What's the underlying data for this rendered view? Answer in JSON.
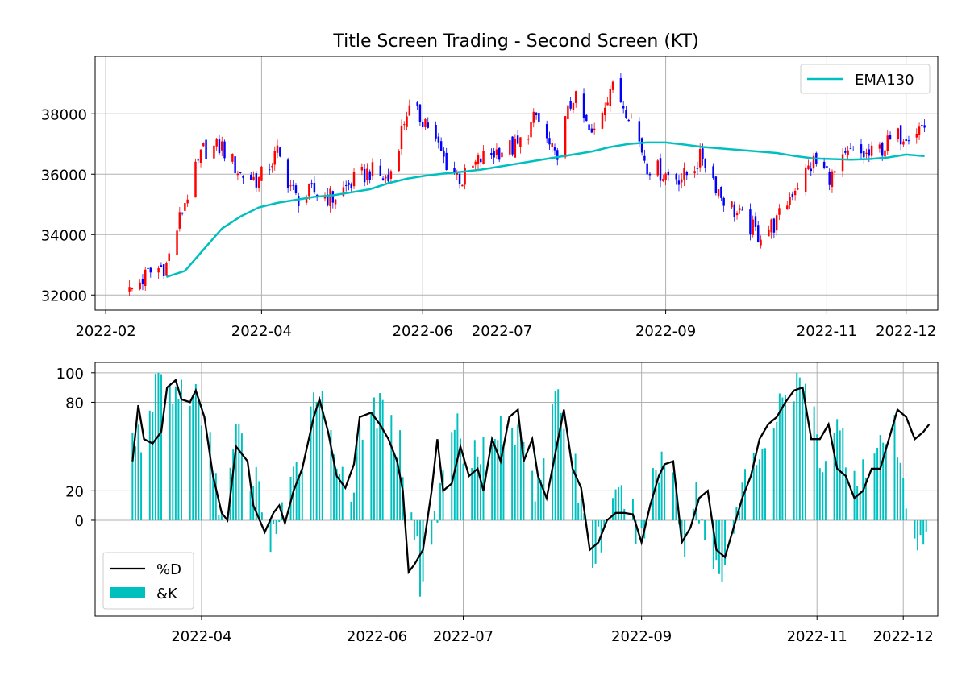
{
  "chart_data": [
    {
      "type": "candlestick",
      "title": "Title Screen Trading - Second Screen (KT)",
      "xlabel": "",
      "ylabel": "",
      "xlim": [
        "2022-01-28",
        "2022-12-13"
      ],
      "ylim": [
        31500,
        39900
      ],
      "grid": true,
      "legend_position": "top-right",
      "x_ticks": [
        "2022-02",
        "2022-04",
        "2022-06",
        "2022-07",
        "2022-09",
        "2022-11",
        "2022-12"
      ],
      "x_tick_dates": [
        "2022-02-01",
        "2022-04-01",
        "2022-06-01",
        "2022-07-01",
        "2022-09-01",
        "2022-11-01",
        "2022-12-01"
      ],
      "y_ticks": [
        32000,
        34000,
        36000,
        38000
      ],
      "colors": {
        "up": "#ff0000",
        "down": "#0000ff",
        "ema": "#00bfbf"
      },
      "close_anchors": {
        "dates": [
          "2022-02-10",
          "2022-02-17",
          "2022-02-24",
          "2022-03-03",
          "2022-03-10",
          "2022-03-17",
          "2022-03-24",
          "2022-03-31",
          "2022-04-07",
          "2022-04-14",
          "2022-04-21",
          "2022-04-28",
          "2022-05-05",
          "2022-05-12",
          "2022-05-19",
          "2022-05-26",
          "2022-06-02",
          "2022-06-09",
          "2022-06-16",
          "2022-06-23",
          "2022-06-30",
          "2022-07-07",
          "2022-07-14",
          "2022-07-21",
          "2022-07-28",
          "2022-08-04",
          "2022-08-11",
          "2022-08-18",
          "2022-08-25",
          "2022-09-01",
          "2022-09-08",
          "2022-09-15",
          "2022-09-22",
          "2022-09-29",
          "2022-10-06",
          "2022-10-13",
          "2022-10-20",
          "2022-10-27",
          "2022-11-03",
          "2022-11-10",
          "2022-11-17",
          "2022-11-24",
          "2022-12-01",
          "2022-12-08"
        ],
        "values": [
          32100,
          32700,
          33000,
          35100,
          36800,
          36900,
          36000,
          35800,
          36700,
          35200,
          35400,
          35200,
          35700,
          36100,
          35800,
          38100,
          37800,
          36500,
          35800,
          36500,
          36800,
          36900,
          37900,
          36500,
          38600,
          37200,
          38900,
          38100,
          36300,
          36000,
          35900,
          36600,
          35300,
          34600,
          34000,
          34400,
          35600,
          36400,
          35900,
          36700,
          36600,
          37000,
          37400,
          37600
        ]
      },
      "series": [
        {
          "name": "EMA130",
          "dates": [
            "2022-02-24",
            "2022-03-03",
            "2022-03-10",
            "2022-03-17",
            "2022-03-24",
            "2022-03-31",
            "2022-04-07",
            "2022-04-14",
            "2022-04-21",
            "2022-04-28",
            "2022-05-05",
            "2022-05-12",
            "2022-05-19",
            "2022-05-26",
            "2022-06-02",
            "2022-06-09",
            "2022-06-16",
            "2022-06-23",
            "2022-06-30",
            "2022-07-07",
            "2022-07-14",
            "2022-07-21",
            "2022-07-28",
            "2022-08-04",
            "2022-08-11",
            "2022-08-18",
            "2022-08-25",
            "2022-09-01",
            "2022-09-08",
            "2022-09-15",
            "2022-09-22",
            "2022-09-29",
            "2022-10-06",
            "2022-10-13",
            "2022-10-20",
            "2022-10-27",
            "2022-11-03",
            "2022-11-10",
            "2022-11-17",
            "2022-11-24",
            "2022-12-01",
            "2022-12-08"
          ],
          "values": [
            32600,
            32800,
            33500,
            34200,
            34600,
            34900,
            35050,
            35150,
            35250,
            35300,
            35400,
            35500,
            35700,
            35850,
            35950,
            36020,
            36080,
            36150,
            36250,
            36350,
            36450,
            36550,
            36650,
            36750,
            36900,
            37000,
            37050,
            37050,
            36980,
            36900,
            36850,
            36800,
            36750,
            36700,
            36600,
            36520,
            36500,
            36480,
            36500,
            36550,
            36650,
            36600
          ]
        }
      ]
    },
    {
      "type": "bar+line",
      "title": "",
      "xlabel": "",
      "ylabel": "",
      "xlim": [
        "2022-02-23",
        "2022-12-13"
      ],
      "ylim": [
        -65,
        107
      ],
      "grid": true,
      "legend_position": "bottom-left",
      "x_ticks": [
        "2022-04",
        "2022-06",
        "2022-07",
        "2022-09",
        "2022-11",
        "2022-12"
      ],
      "x_tick_dates": [
        "2022-04-01",
        "2022-06-01",
        "2022-07-01",
        "2022-09-01",
        "2022-11-01",
        "2022-12-01"
      ],
      "y_ticks": [
        0,
        20,
        80,
        100
      ],
      "series": [
        {
          "name": "%D",
          "type": "line",
          "color": "#000000",
          "dates": [
            "2022-03-08",
            "2022-03-10",
            "2022-03-12",
            "2022-03-15",
            "2022-03-18",
            "2022-03-20",
            "2022-03-23",
            "2022-03-25",
            "2022-03-28",
            "2022-03-30",
            "2022-04-02",
            "2022-04-05",
            "2022-04-08",
            "2022-04-10",
            "2022-04-13",
            "2022-04-17",
            "2022-04-19",
            "2022-04-23",
            "2022-04-26",
            "2022-04-28",
            "2022-04-30",
            "2022-05-03",
            "2022-05-06",
            "2022-05-10",
            "2022-05-12",
            "2022-05-15",
            "2022-05-18",
            "2022-05-21",
            "2022-05-24",
            "2022-05-26",
            "2022-05-30",
            "2022-06-02",
            "2022-06-05",
            "2022-06-08",
            "2022-06-10",
            "2022-06-12",
            "2022-06-14",
            "2022-06-17",
            "2022-06-20",
            "2022-06-22",
            "2022-06-24",
            "2022-06-27",
            "2022-06-30",
            "2022-07-03",
            "2022-07-06",
            "2022-07-08",
            "2022-07-11",
            "2022-07-14",
            "2022-07-17",
            "2022-07-20",
            "2022-07-22",
            "2022-07-25",
            "2022-07-27",
            "2022-07-30",
            "2022-08-02",
            "2022-08-05",
            "2022-08-08",
            "2022-08-11",
            "2022-08-14",
            "2022-08-17",
            "2022-08-20",
            "2022-08-23",
            "2022-08-26",
            "2022-08-29",
            "2022-09-01",
            "2022-09-04",
            "2022-09-07",
            "2022-09-09",
            "2022-09-12",
            "2022-09-15",
            "2022-09-18",
            "2022-09-21",
            "2022-09-24",
            "2022-09-27",
            "2022-09-30",
            "2022-10-03",
            "2022-10-06",
            "2022-10-09",
            "2022-10-12",
            "2022-10-15",
            "2022-10-18",
            "2022-10-21",
            "2022-10-24",
            "2022-10-27",
            "2022-10-30",
            "2022-11-02",
            "2022-11-05",
            "2022-11-08",
            "2022-11-11",
            "2022-11-14",
            "2022-11-17",
            "2022-11-20",
            "2022-11-23",
            "2022-11-26",
            "2022-11-29",
            "2022-12-02",
            "2022-12-05",
            "2022-12-08",
            "2022-12-10"
          ],
          "values": [
            40,
            78,
            55,
            52,
            60,
            90,
            95,
            82,
            80,
            88,
            70,
            30,
            5,
            0,
            50,
            40,
            10,
            -8,
            5,
            10,
            -2,
            20,
            35,
            70,
            82,
            60,
            30,
            22,
            38,
            70,
            73,
            65,
            55,
            40,
            20,
            -35,
            -30,
            -20,
            20,
            55,
            20,
            25,
            50,
            30,
            35,
            20,
            55,
            40,
            70,
            75,
            40,
            55,
            30,
            15,
            45,
            75,
            35,
            22,
            -20,
            -15,
            0,
            5,
            5,
            4,
            -15,
            10,
            30,
            38,
            40,
            -15,
            -5,
            15,
            20,
            -20,
            -25,
            -5,
            15,
            30,
            55,
            65,
            70,
            80,
            88,
            90,
            55,
            55,
            65,
            35,
            30,
            15,
            20,
            35,
            35,
            55,
            75,
            70,
            55,
            60,
            65
          ]
        },
        {
          "name": "&K",
          "type": "bar",
          "color": "#00bfbf",
          "dates": [
            "2022-03-08",
            "2022-03-12",
            "2022-03-16",
            "2022-03-20",
            "2022-03-24",
            "2022-03-28",
            "2022-04-01",
            "2022-04-05",
            "2022-04-09",
            "2022-04-13",
            "2022-04-17",
            "2022-04-21",
            "2022-04-25",
            "2022-04-29",
            "2022-05-03",
            "2022-05-07",
            "2022-05-11",
            "2022-05-15",
            "2022-05-19",
            "2022-05-23",
            "2022-05-27",
            "2022-05-31",
            "2022-06-04",
            "2022-06-08",
            "2022-06-12",
            "2022-06-16",
            "2022-06-20",
            "2022-06-24",
            "2022-06-28",
            "2022-07-02",
            "2022-07-06",
            "2022-07-10",
            "2022-07-14",
            "2022-07-18",
            "2022-07-22",
            "2022-07-26",
            "2022-07-30",
            "2022-08-03",
            "2022-08-07",
            "2022-08-11",
            "2022-08-15",
            "2022-08-19",
            "2022-08-23",
            "2022-08-27",
            "2022-08-31",
            "2022-09-04",
            "2022-09-08",
            "2022-09-12",
            "2022-09-16",
            "2022-09-20",
            "2022-09-24",
            "2022-09-28",
            "2022-10-02",
            "2022-10-06",
            "2022-10-10",
            "2022-10-14",
            "2022-10-18",
            "2022-10-22",
            "2022-10-26",
            "2022-10-30",
            "2022-11-03",
            "2022-11-07",
            "2022-11-11",
            "2022-11-15",
            "2022-11-19",
            "2022-11-23",
            "2022-11-27",
            "2022-12-01",
            "2022-12-05",
            "2022-12-09"
          ],
          "values": [
            70,
            30,
            98,
            92,
            85,
            90,
            70,
            40,
            -5,
            60,
            35,
            20,
            -10,
            0,
            25,
            55,
            95,
            60,
            40,
            20,
            60,
            75,
            70,
            55,
            30,
            -40,
            -15,
            30,
            70,
            45,
            55,
            40,
            65,
            50,
            65,
            25,
            55,
            80,
            60,
            10,
            -25,
            -5,
            8,
            20,
            -15,
            20,
            40,
            35,
            -20,
            20,
            -25,
            -30,
            -20,
            20,
            40,
            55,
            70,
            85,
            95,
            75,
            40,
            65,
            50,
            30,
            40,
            45,
            70,
            20,
            -10,
            -5
          ]
        }
      ]
    }
  ]
}
